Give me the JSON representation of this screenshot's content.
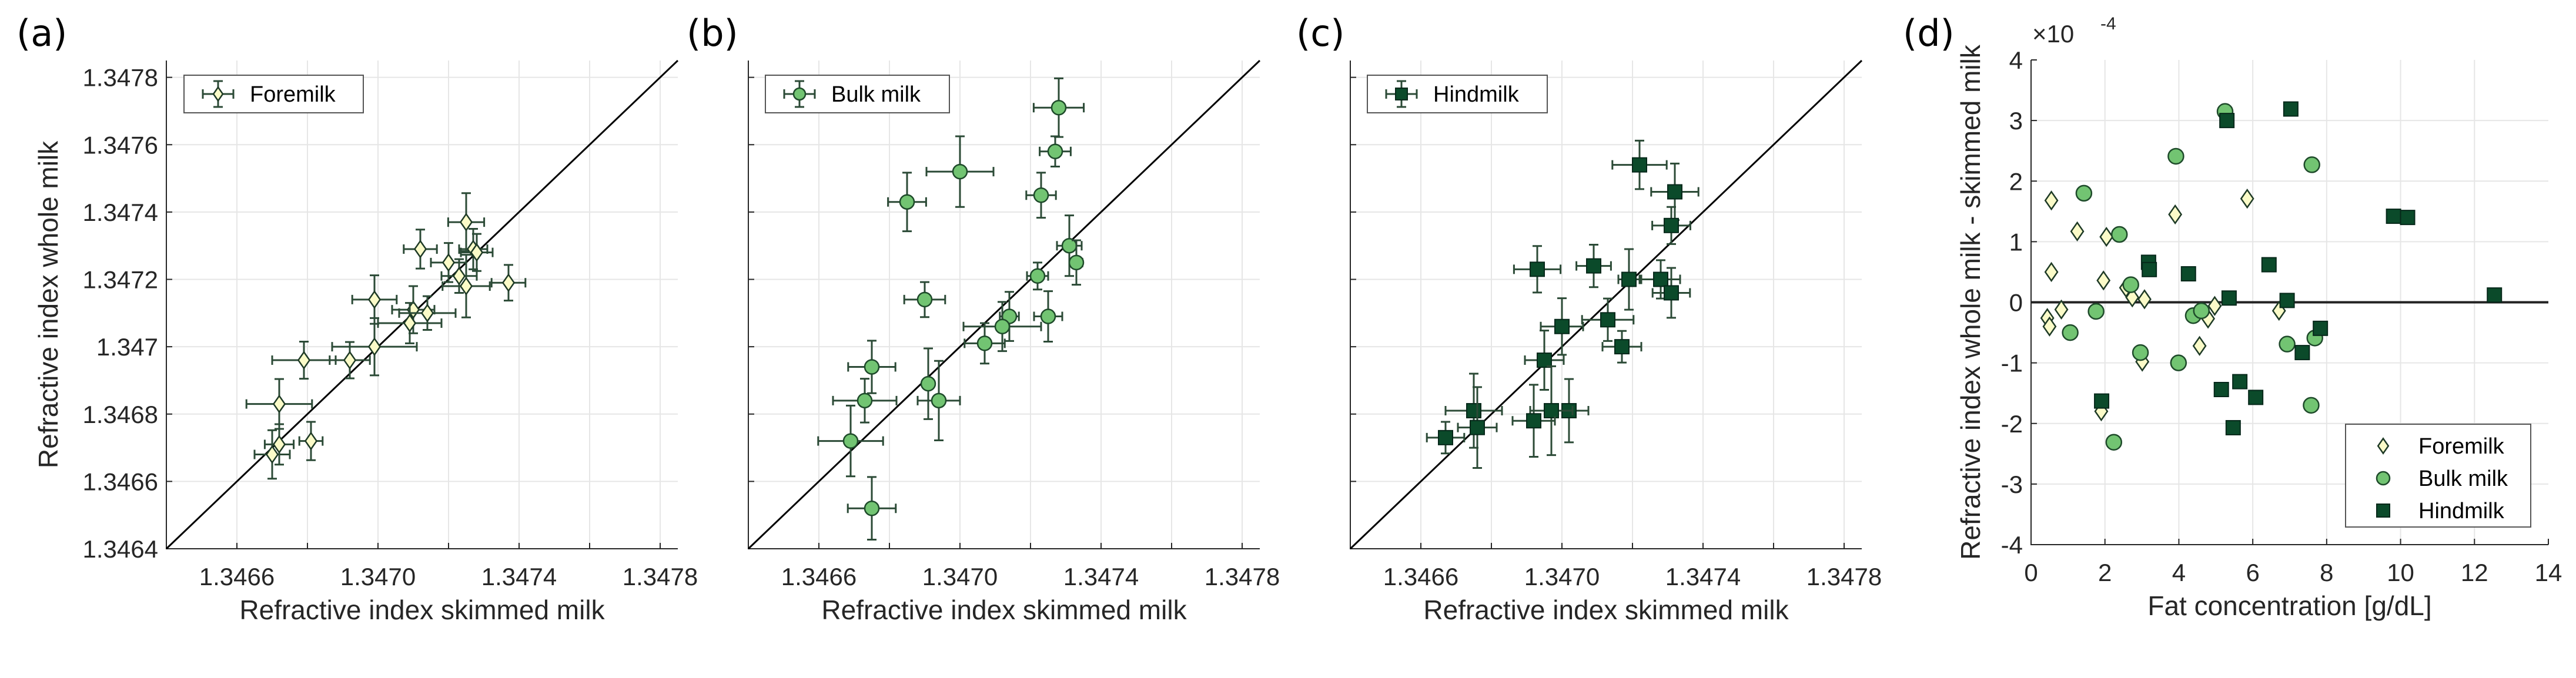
{
  "chart_data": [
    {
      "type": "scatter",
      "panel_label": "(a)",
      "xlabel": "Refractive index skimmed milk",
      "ylabel": "Refractive index whole milk",
      "xlim": [
        1.3464,
        1.34785
      ],
      "ylim": [
        1.3464,
        1.34785
      ],
      "grid": true,
      "xticks": [
        1.3466,
        1.347,
        1.3474,
        1.3478
      ],
      "xtick_labels": [
        "1.3466",
        "1.3470",
        "1.3474",
        "1.3478"
      ],
      "yticks": [
        1.3464,
        1.3466,
        1.3468,
        1.347,
        1.3472,
        1.3474,
        1.3476,
        1.3478
      ],
      "ytick_labels": [
        "1.3464",
        "1.3466",
        "1.3468",
        "1.347",
        "1.3472",
        "1.3474",
        "1.3476",
        "1.3478"
      ],
      "reference_line": "y = x",
      "legend": {
        "placement": "top-left",
        "entries": [
          "Foremilk"
        ]
      },
      "series": [
        {
          "name": "Foremilk",
          "marker": "diamond",
          "color": "#fbfbc8",
          "edge": "#1e3a26",
          "x": [
            1.34725,
            1.34712,
            1.3472,
            1.34727,
            1.34728,
            1.34723,
            1.34725,
            1.34737,
            1.34699,
            1.3471,
            1.34714,
            1.34709,
            1.34699,
            1.34692,
            1.34679,
            1.34672,
            1.34672,
            1.34681,
            1.3467
          ],
          "y": [
            1.34737,
            1.34729,
            1.34725,
            1.34729,
            1.34728,
            1.34721,
            1.34718,
            1.34719,
            1.34714,
            1.34711,
            1.3471,
            1.34707,
            1.347,
            1.34696,
            1.34696,
            1.34683,
            1.34671,
            1.34672,
            1.34668
          ],
          "xerr": [
            5.1e-05,
            4.7e-05,
            5e-05,
            4e-05,
            4.5e-05,
            5e-05,
            6.7e-05,
            4.8e-05,
            6.3e-05,
            6e-05,
            8e-05,
            9e-05,
            0.00012,
            5.7e-05,
            9e-05,
            9.3e-05,
            4.1e-05,
            3.3e-05,
            5e-05
          ],
          "yerr": [
            8.6e-05,
            5.8e-05,
            5.8e-05,
            6e-05,
            5.5e-05,
            5e-05,
            9.3e-05,
            5.3e-05,
            7.2e-05,
            7e-05,
            5e-05,
            6e-05,
            8.5e-05,
            5.4e-05,
            5.5e-05,
            7.4e-05,
            6e-05,
            5.7e-05,
            7.2e-05
          ]
        }
      ]
    },
    {
      "type": "scatter",
      "panel_label": "(b)",
      "xlabel": "Refractive index skimmed milk",
      "ylabel": "",
      "xlim": [
        1.3464,
        1.34785
      ],
      "ylim": [
        1.3464,
        1.34785
      ],
      "grid": true,
      "xticks": [
        1.3466,
        1.347,
        1.3474,
        1.3478
      ],
      "xtick_labels": [
        "1.3466",
        "1.3470",
        "1.3474",
        "1.3478"
      ],
      "yticks": [
        1.3464,
        1.3466,
        1.3468,
        1.347,
        1.3472,
        1.3474,
        1.3476,
        1.3478
      ],
      "ytick_labels": [],
      "reference_line": "y = x",
      "legend": {
        "placement": "top-left",
        "entries": [
          "Bulk milk"
        ]
      },
      "series": [
        {
          "name": "Bulk milk",
          "marker": "circle",
          "color": "#72c472",
          "edge": "#1e4a2a",
          "x": [
            1.34728,
            1.34727,
            1.347,
            1.34685,
            1.34723,
            1.34731,
            1.34733,
            1.34722,
            1.3469,
            1.34714,
            1.34725,
            1.34712,
            1.34707,
            1.34675,
            1.34691,
            1.34694,
            1.34673,
            1.34669,
            1.34675
          ],
          "y": [
            1.34771,
            1.34758,
            1.34752,
            1.34743,
            1.34745,
            1.3473,
            1.34725,
            1.34721,
            1.34714,
            1.34709,
            1.34709,
            1.34706,
            1.34701,
            1.34694,
            1.34689,
            1.34684,
            1.34684,
            1.34672,
            1.34652
          ],
          "xerr": [
            7.1e-05,
            4.4e-05,
            9.5e-05,
            5.4e-05,
            4.2e-05,
            3.5e-05,
            1.7e-05,
            3e-05,
            5.8e-05,
            2.7e-05,
            4e-05,
            0.00011,
            5.7e-05,
            6.7e-05,
            1e-05,
            6e-05,
            9e-05,
            9.2e-05,
            6.8e-05
          ],
          "yerr": [
            8.7e-05,
            4.5e-05,
            0.000105,
            8.7e-05,
            6.7e-05,
            9e-05,
            6.6e-05,
            4e-05,
            5.2e-05,
            7.3e-05,
            7.5e-05,
            7.3e-05,
            6e-05,
            7.8e-05,
            0.000105,
            0.000118,
            6.5e-05,
            0.000105,
            9.3e-05
          ]
        }
      ]
    },
    {
      "type": "scatter",
      "panel_label": "(c)",
      "xlabel": "Refractive index skimmed milk",
      "ylabel": "",
      "xlim": [
        1.3464,
        1.34785
      ],
      "ylim": [
        1.3464,
        1.34785
      ],
      "grid": true,
      "xticks": [
        1.3466,
        1.347,
        1.3474,
        1.3478
      ],
      "xtick_labels": [
        "1.3466",
        "1.3470",
        "1.3474",
        "1.3478"
      ],
      "yticks": [
        1.3464,
        1.3466,
        1.3468,
        1.347,
        1.3472,
        1.3474,
        1.3476,
        1.3478
      ],
      "ytick_labels": [],
      "reference_line": "y = x",
      "legend": {
        "placement": "top-left",
        "entries": [
          "Hindmilk"
        ]
      },
      "series": [
        {
          "name": "Hindmilk",
          "marker": "square",
          "color": "#0b4a2a",
          "edge": "#06281a",
          "x": [
            1.34722,
            1.34732,
            1.34731,
            1.34693,
            1.34709,
            1.34719,
            1.34728,
            1.34731,
            1.34713,
            1.347,
            1.34717,
            1.34695,
            1.34675,
            1.34702,
            1.34697,
            1.34692,
            1.34676,
            1.34667
          ],
          "y": [
            1.34754,
            1.34746,
            1.34736,
            1.34723,
            1.34724,
            1.3472,
            1.3472,
            1.34716,
            1.34708,
            1.34706,
            1.347,
            1.34696,
            1.34681,
            1.34681,
            1.34681,
            1.34678,
            1.34676,
            1.34673
          ],
          "xerr": [
            7.7e-05,
            6.7e-05,
            5.4e-05,
            6.6e-05,
            4.9e-05,
            3e-05,
            5.5e-05,
            5.3e-05,
            7.3e-05,
            6e-05,
            5.5e-05,
            5.5e-05,
            8e-05,
            5.5e-05,
            6e-05,
            6e-05,
            5.5e-05,
            5.3e-05
          ],
          "yerr": [
            7.2e-05,
            8.4e-05,
            5.5e-05,
            6.9e-05,
            6.3e-05,
            9e-05,
            5.7e-05,
            7.4e-05,
            6.3e-05,
            8.4e-05,
            4.7e-05,
            8.8e-05,
            0.00011,
            9.4e-05,
            0.000132,
            0.000107,
            0.00012,
            4.7e-05
          ]
        }
      ]
    },
    {
      "type": "scatter",
      "panel_label": "(d)",
      "xlabel": "Fat concentration [g/dL]",
      "ylabel": "Refractive index whole milk - skimmed milk",
      "y_multiplier": "×10",
      "y_exponent": "-4",
      "xlim": [
        0,
        14
      ],
      "ylim": [
        -4,
        4
      ],
      "grid": true,
      "xticks": [
        0,
        2,
        4,
        6,
        8,
        10,
        12,
        14
      ],
      "xtick_labels": [
        "0",
        "2",
        "4",
        "6",
        "8",
        "10",
        "12",
        "14"
      ],
      "yticks": [
        -4,
        -3,
        -2,
        -1,
        0,
        1,
        2,
        3,
        4
      ],
      "ytick_labels": [
        "-4",
        "-3",
        "-2",
        "-1",
        "0",
        "1",
        "2",
        "3",
        "4"
      ],
      "reference_line": "y = 0",
      "legend": {
        "placement": "bottom-right",
        "entries": [
          "Foremilk",
          "Bulk milk",
          "Hindmilk"
        ]
      },
      "series": [
        {
          "name": "Foremilk",
          "marker": "diamond",
          "color": "#fbfbc8",
          "edge": "#1e3a26",
          "x": [
            0.55,
            1.25,
            2.04,
            0.55,
            1.96,
            2.57,
            2.74,
            3.07,
            0.82,
            0.44,
            0.5,
            1.9,
            3.01,
            3.9,
            5.85,
            4.97,
            4.79,
            4.56,
            6.71
          ],
          "y": [
            1.68,
            1.17,
            1.08,
            0.5,
            0.36,
            0.24,
            0.08,
            0.05,
            -0.12,
            -0.26,
            -0.4,
            -1.8,
            -0.98,
            1.45,
            1.71,
            -0.06,
            -0.27,
            -0.72,
            -0.14
          ]
        },
        {
          "name": "Bulk milk",
          "marker": "circle",
          "color": "#72c472",
          "edge": "#1e4a2a",
          "x": [
            5.25,
            3.92,
            7.6,
            1.43,
            2.39,
            2.7,
            1.76,
            1.06,
            2.96,
            3.99,
            4.39,
            4.61,
            6.93,
            7.68,
            7.58,
            2.24
          ],
          "y": [
            3.15,
            2.41,
            2.27,
            1.8,
            1.12,
            0.29,
            -0.15,
            -0.5,
            -0.83,
            -1.0,
            -0.22,
            -0.14,
            -0.69,
            -0.59,
            -1.7,
            -2.31
          ]
        },
        {
          "name": "Hindmilk",
          "marker": "square",
          "color": "#0b4a2a",
          "edge": "#06281a",
          "x": [
            7.03,
            5.3,
            9.81,
            10.19,
            3.18,
            3.2,
            4.26,
            6.44,
            5.36,
            6.93,
            12.54,
            7.83,
            7.34,
            5.65,
            5.15,
            6.08,
            1.91,
            5.47
          ],
          "y": [
            3.19,
            3.0,
            1.42,
            1.4,
            0.66,
            0.54,
            0.47,
            0.62,
            0.07,
            0.03,
            0.12,
            -0.43,
            -0.83,
            -1.31,
            -1.44,
            -1.57,
            -1.63,
            -2.07
          ]
        }
      ]
    }
  ]
}
